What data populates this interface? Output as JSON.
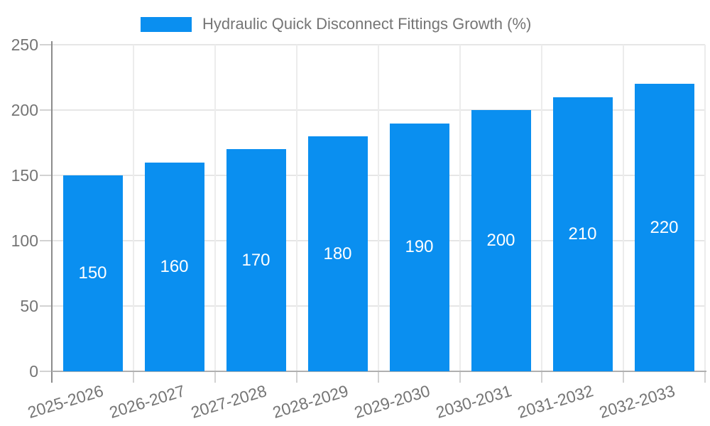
{
  "chart_data": {
    "type": "bar",
    "title": "",
    "categories": [
      "2025-2026",
      "2026-2027",
      "2027-2028",
      "2028-2029",
      "2029-2030",
      "2030-2031",
      "2031-2032",
      "2032-2033"
    ],
    "series": [
      {
        "name": "Hydraulic Quick Disconnect Fittings Growth (%)",
        "values": [
          150,
          160,
          170,
          180,
          190,
          200,
          210,
          220
        ]
      }
    ],
    "bar_value_labels": [
      "150",
      "160",
      "170",
      "180",
      "190",
      "200",
      "210",
      "220"
    ],
    "xlabel": "",
    "ylabel": "",
    "ylim": [
      0,
      250
    ],
    "yticks": [
      0,
      50,
      100,
      150,
      200,
      250
    ],
    "grid": true,
    "legend_position": "top",
    "colors": {
      "bar": "#0a8ff0",
      "grid_horizontal": "#e6e6e6",
      "grid_vertical": "#ececec",
      "axis_y": "#8c8c8c",
      "axis_x": "#b0b0b0",
      "tick": "#d2d2d2",
      "tick_text": "#757575",
      "bar_label_text": "#ffffff",
      "background": "#ffffff"
    }
  }
}
